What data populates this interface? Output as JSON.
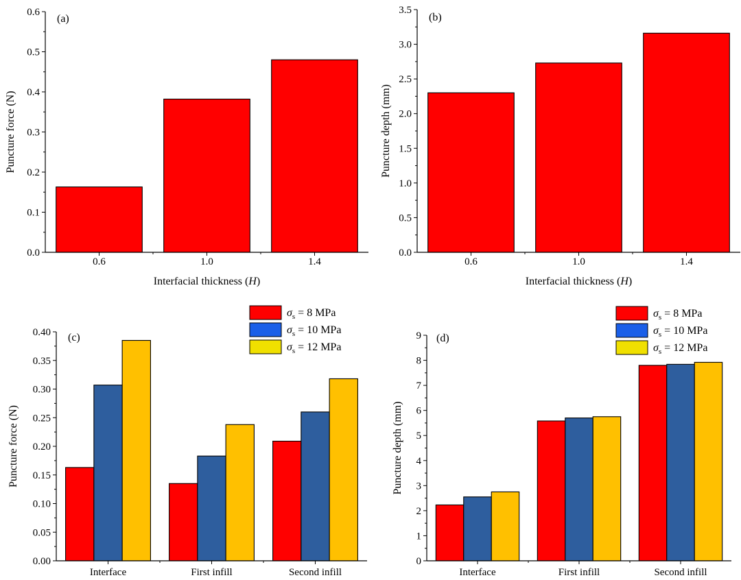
{
  "chart_data": [
    {
      "type": "bar",
      "panel_label": "(a)",
      "categories": [
        "0.6",
        "1.0",
        "1.4"
      ],
      "values": [
        0.163,
        0.382,
        0.48
      ],
      "xlabel": "Interfacial thickness (H)",
      "ylabel": "Puncture force (N)",
      "ylim": [
        0,
        0.6
      ],
      "yticks": [
        "0.0",
        "0.1",
        "0.2",
        "0.3",
        "0.4",
        "0.5",
        "0.6"
      ],
      "bar_color": "#ff0000"
    },
    {
      "type": "bar",
      "panel_label": "(b)",
      "categories": [
        "0.6",
        "1.0",
        "1.4"
      ],
      "values": [
        2.3,
        2.73,
        3.16
      ],
      "xlabel": "Interfacial thickness (H)",
      "ylabel": "Puncture depth (mm)",
      "ylim": [
        0,
        3.5
      ],
      "yticks": [
        "0.0",
        "0.5",
        "1.0",
        "1.5",
        "2.0",
        "2.5",
        "3.0",
        "3.5"
      ],
      "bar_color": "#ff0000"
    },
    {
      "type": "bar",
      "panel_label": "(c)",
      "categories": [
        "Interface",
        "First infill",
        "Second infill"
      ],
      "series": [
        {
          "name": "σs = 8 MPa",
          "values": [
            0.163,
            0.135,
            0.209
          ],
          "color": "#ff0000",
          "legend_color": "#ff0000"
        },
        {
          "name": "σs = 10 MPa",
          "values": [
            0.307,
            0.183,
            0.26
          ],
          "color": "#2e5e9e",
          "legend_color": "#1a5fe8"
        },
        {
          "name": "σs = 12 MPa",
          "values": [
            0.385,
            0.238,
            0.318
          ],
          "color": "#ffc000",
          "legend_color": "#f0e000"
        }
      ],
      "ylabel": "Puncture force (N)",
      "ylim": [
        0,
        0.4
      ],
      "yticks": [
        "0.00",
        "0.05",
        "0.10",
        "0.15",
        "0.20",
        "0.25",
        "0.30",
        "0.35",
        "0.40"
      ],
      "legend_position": "top-right"
    },
    {
      "type": "bar",
      "panel_label": "(d)",
      "categories": [
        "Interface",
        "First infill",
        "Second infill"
      ],
      "series": [
        {
          "name": "σs = 8 MPa",
          "values": [
            2.23,
            5.58,
            7.8
          ],
          "color": "#ff0000",
          "legend_color": "#ff0000"
        },
        {
          "name": "σs = 10 MPa",
          "values": [
            2.55,
            5.7,
            7.84
          ],
          "color": "#2e5e9e",
          "legend_color": "#1a5fe8"
        },
        {
          "name": "σs = 12 MPa",
          "values": [
            2.75,
            5.75,
            7.92
          ],
          "color": "#ffc000",
          "legend_color": "#f0e000"
        }
      ],
      "ylabel": "Puncture depth (mm)",
      "ylim": [
        0,
        9
      ],
      "yticks": [
        "0",
        "1",
        "2",
        "3",
        "4",
        "5",
        "6",
        "7",
        "8",
        "9"
      ],
      "legend_position": "top-right"
    }
  ]
}
